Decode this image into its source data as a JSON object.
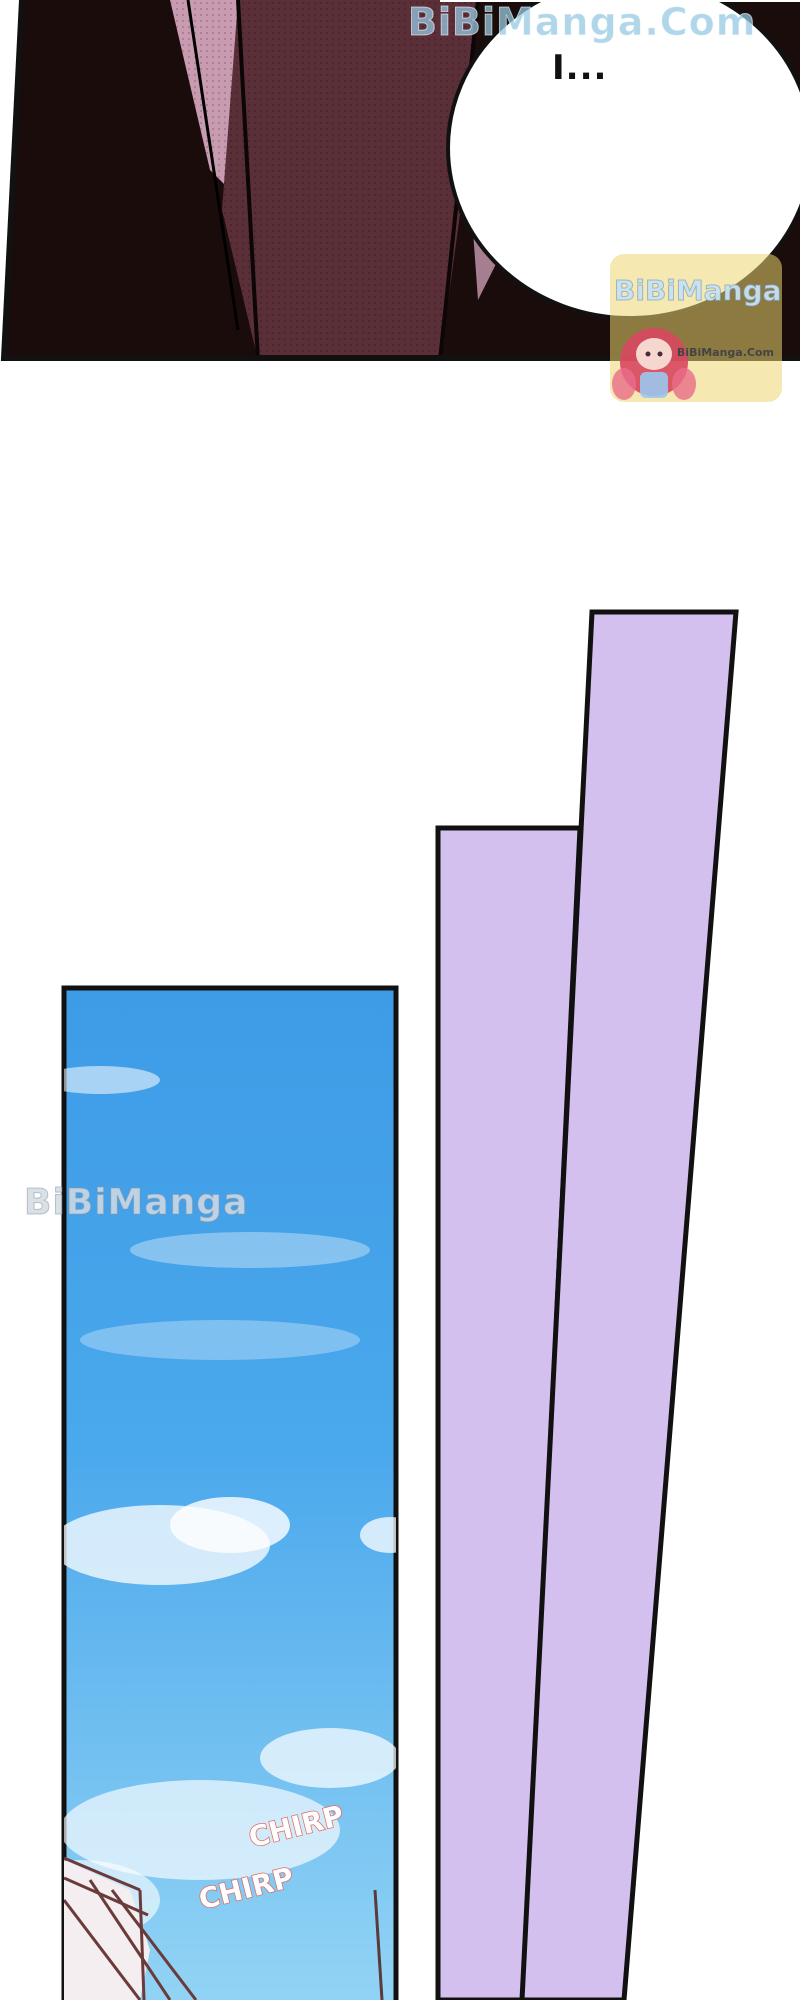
{
  "watermark_top": "BiBiManga.Com",
  "speech_bubble": {
    "text": "I..."
  },
  "badge": {
    "title": "BiBiManga",
    "subtitle": "BiBiManga.Com"
  },
  "watermark_mid": "BiBiManga",
  "sfx": [
    "CHIRP",
    "CHIRP"
  ],
  "colors": {
    "suit": "#1a0c0b",
    "tie": "#5a2f38",
    "shirt": "#c89bb0",
    "bubble": "#ffffff",
    "panel_lavender": "#d4c0ee",
    "sky_top": "#3a97e4",
    "sky_bottom": "#8fd2f4",
    "border": "#111111",
    "sfx": "#e06a63"
  }
}
